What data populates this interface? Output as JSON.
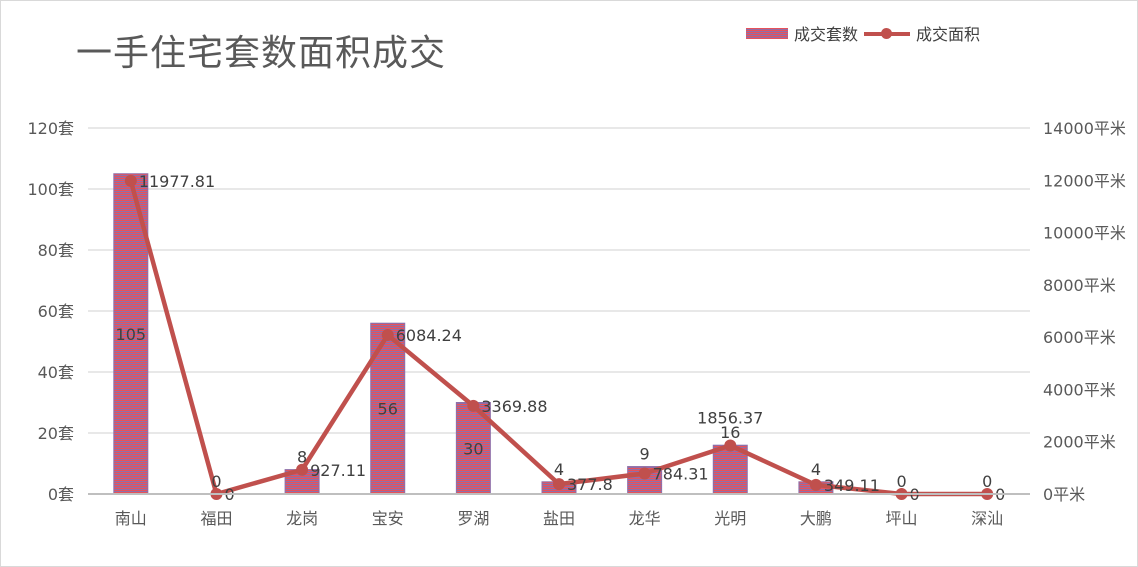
{
  "chart_data": {
    "type": "bar",
    "title": "一手住宅套数面积成交",
    "categories": [
      "南山",
      "福田",
      "龙岗",
      "宝安",
      "罗湖",
      "盐田",
      "龙华",
      "光明",
      "大鹏",
      "坪山",
      "深汕"
    ],
    "series": [
      {
        "name": "成交套数",
        "type": "bar",
        "axis": "left",
        "values": [
          105,
          0,
          8,
          56,
          30,
          4,
          9,
          16,
          4,
          0,
          0
        ],
        "labels": [
          "105",
          "0",
          "8",
          "56",
          "30",
          "4",
          "9",
          "16",
          "4",
          "0",
          "0"
        ]
      },
      {
        "name": "成交面积",
        "type": "line",
        "axis": "right",
        "values": [
          11977.81,
          0,
          927.11,
          6084.24,
          3369.88,
          377.8,
          784.31,
          1856.37,
          349.11,
          0,
          0
        ],
        "labels": [
          "11977.81",
          "0",
          "927.11",
          "6084.24",
          "3369.88",
          "377.8",
          "784.31",
          "1856.37",
          "349.11",
          "0",
          "0"
        ]
      }
    ],
    "y_left": {
      "min": 0,
      "max": 120,
      "ticks": [
        "0套",
        "20套",
        "40套",
        "60套",
        "80套",
        "100套",
        "120套"
      ]
    },
    "y_right": {
      "min": 0,
      "max": 14000,
      "ticks": [
        "0平米",
        "2000平米",
        "4000平米",
        "6000平米",
        "8000平米",
        "10000平米",
        "12000平米",
        "14000平米"
      ]
    },
    "grid": true,
    "legend_position": "top-right",
    "colors": {
      "bar_a": "#e8525a",
      "bar_b": "#8f6fa8",
      "line": "#c0504d",
      "grid": "#d9d9d9",
      "axis_text": "#595959",
      "label_text": "#404040"
    }
  }
}
